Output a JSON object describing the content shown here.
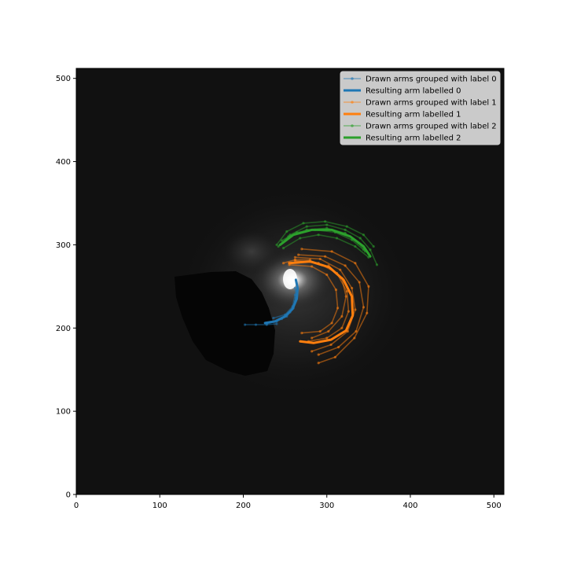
{
  "chart_data": {
    "type": "line",
    "title": "",
    "xlabel": "",
    "ylabel": "",
    "xlim": [
      0,
      512
    ],
    "ylim": [
      0,
      512
    ],
    "x_ticks": [
      0,
      100,
      200,
      300,
      400,
      500
    ],
    "y_ticks": [
      0,
      100,
      200,
      300,
      400,
      500
    ],
    "grid": false,
    "legend_position": "top-right",
    "background_image": "grayscale galaxy image with bright core near (255,260) and a dark masked region to the left",
    "series": [
      {
        "name": "Drawn arms grouped with label 0",
        "style": "faint-thin-markers",
        "color": "#1f77b4",
        "lines": [
          [
            [
              202,
              204
            ],
            [
              215,
              204
            ],
            [
              228,
              204
            ],
            [
              240,
              205
            ]
          ],
          [
            [
              228,
              205
            ],
            [
              240,
              208
            ],
            [
              252,
              214
            ],
            [
              260,
              224
            ],
            [
              263,
              236
            ],
            [
              262,
              248
            ]
          ],
          [
            [
              232,
              207
            ],
            [
              246,
              211
            ],
            [
              256,
              219
            ],
            [
              262,
              232
            ],
            [
              264,
              245
            ]
          ],
          [
            [
              236,
              212
            ],
            [
              250,
              216
            ],
            [
              259,
              226
            ],
            [
              262,
              240
            ]
          ]
        ]
      },
      {
        "name": "Resulting arm labelled 0",
        "style": "thick",
        "color": "#1f77b4",
        "points": [
          [
            226,
            206
          ],
          [
            238,
            208
          ],
          [
            250,
            214
          ],
          [
            259,
            223
          ],
          [
            264,
            235
          ],
          [
            265,
            248
          ],
          [
            263,
            258
          ]
        ]
      },
      {
        "name": "Drawn arms grouped with label 1",
        "style": "faint-thin-markers",
        "color": "#ff7f0e",
        "lines": [
          [
            [
              262,
              285
            ],
            [
              292,
              283
            ],
            [
              316,
              270
            ],
            [
              330,
              248
            ],
            [
              334,
              222
            ],
            [
              325,
              196
            ],
            [
              305,
              180
            ],
            [
              282,
              172
            ]
          ],
          [
            [
              266,
              288
            ],
            [
              298,
              286
            ],
            [
              322,
              275
            ],
            [
              339,
              255
            ],
            [
              344,
              225
            ],
            [
              335,
              196
            ],
            [
              314,
              177
            ],
            [
              290,
              168
            ]
          ],
          [
            [
              262,
              281
            ],
            [
              290,
              278
            ],
            [
              312,
              266
            ],
            [
              324,
              244
            ],
            [
              326,
              220
            ],
            [
              318,
              200
            ],
            [
              300,
              188
            ],
            [
              278,
              184
            ]
          ],
          [
            [
              270,
              295
            ],
            [
              306,
              292
            ],
            [
              334,
              278
            ],
            [
              350,
              250
            ],
            [
              348,
              218
            ],
            [
              333,
              188
            ],
            [
              310,
              165
            ],
            [
              290,
              158
            ]
          ],
          [
            [
              255,
              276
            ],
            [
              282,
              274
            ],
            [
              300,
              264
            ],
            [
              311,
              246
            ],
            [
              313,
              224
            ],
            [
              306,
              206
            ],
            [
              292,
              196
            ],
            [
              270,
              194
            ]
          ],
          [
            [
              302,
              275
            ],
            [
              318,
              260
            ],
            [
              323,
              238
            ],
            [
              318,
              214
            ],
            [
              302,
              196
            ],
            [
              282,
              188
            ]
          ],
          [
            [
              248,
              278
            ],
            [
              262,
              282
            ],
            [
              280,
              282
            ]
          ]
        ]
      },
      {
        "name": "Resulting arm labelled 1",
        "style": "thick",
        "color": "#ff7f0e",
        "points": [
          [
            255,
            278
          ],
          [
            280,
            280
          ],
          [
            303,
            273
          ],
          [
            320,
            258
          ],
          [
            330,
            238
          ],
          [
            331,
            215
          ],
          [
            323,
            197
          ],
          [
            305,
            186
          ],
          [
            284,
            182
          ],
          [
            268,
            184
          ]
        ]
      },
      {
        "name": "Drawn arms grouped with label 2",
        "style": "faint-thin-markers",
        "color": "#2ca02c",
        "lines": [
          [
            [
              242,
              298
            ],
            [
              256,
              312
            ],
            [
              276,
              322
            ],
            [
              300,
              324
            ],
            [
              322,
              318
            ],
            [
              340,
              308
            ],
            [
              352,
              294
            ],
            [
              360,
              276
            ]
          ],
          [
            [
              246,
              305
            ],
            [
              264,
              315
            ],
            [
              286,
              318
            ],
            [
              310,
              315
            ],
            [
              330,
              306
            ],
            [
              344,
              294
            ]
          ],
          [
            [
              240,
              300
            ],
            [
              252,
              316
            ],
            [
              272,
              326
            ],
            [
              298,
              328
            ],
            [
              324,
              322
            ],
            [
              344,
              312
            ],
            [
              356,
              298
            ]
          ],
          [
            [
              248,
              296
            ],
            [
              268,
              308
            ],
            [
              290,
              312
            ],
            [
              312,
              308
            ],
            [
              334,
              298
            ],
            [
              350,
              285
            ]
          ],
          [
            [
              254,
              310
            ],
            [
              276,
              318
            ],
            [
              300,
              320
            ],
            [
              322,
              314
            ],
            [
              338,
              302
            ],
            [
              346,
              292
            ]
          ]
        ]
      },
      {
        "name": "Resulting arm labelled 2",
        "style": "thick",
        "color": "#2ca02c",
        "points": [
          [
            244,
            300
          ],
          [
            260,
            312
          ],
          [
            282,
            318
          ],
          [
            306,
            318
          ],
          [
            328,
            310
          ],
          [
            344,
            298
          ],
          [
            352,
            286
          ]
        ]
      }
    ]
  }
}
